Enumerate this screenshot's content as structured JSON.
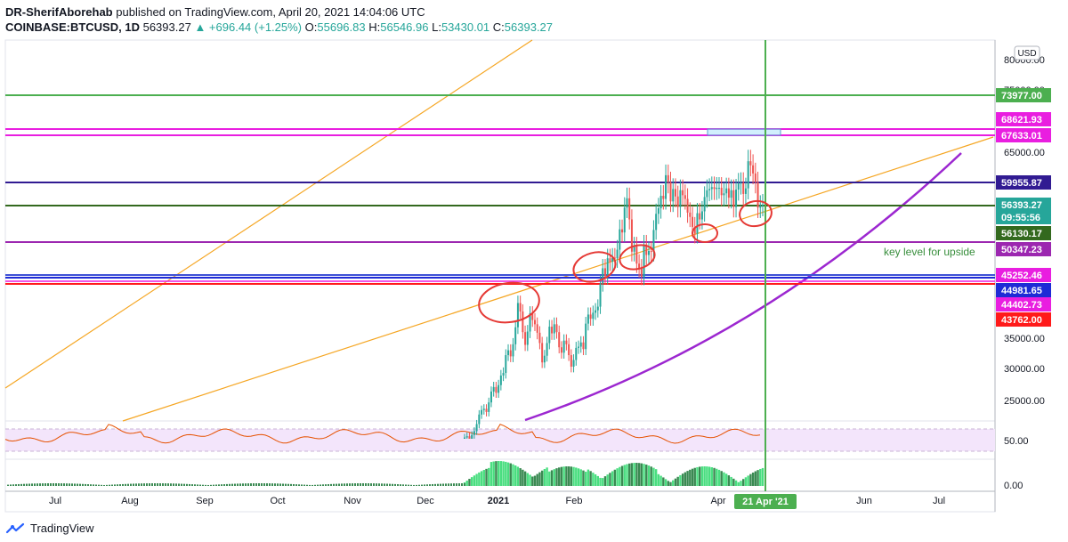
{
  "header": {
    "author": "DR-SherifAborehab",
    "published_text": "published on TradingView.com, April 20, 2021 14:04:06 UTC",
    "symbol": "COINBASE:BTCUSD, 1D",
    "last": "56393.27",
    "change": "▲ +696.44 (+1.25%)",
    "o_label": "O:",
    "o": "55696.83",
    "h_label": "H:",
    "h": "56546.96",
    "l_label": "L:",
    "l": "53430.01",
    "c_label": "C:",
    "c": "56393.27"
  },
  "footer": {
    "brand": "TradingView"
  },
  "currency_button": "USD",
  "annotation_text": "key level for upside",
  "chart_data": {
    "type": "candlestick",
    "title": "",
    "xlabel": "",
    "ylabel": "",
    "ylim": [
      20000,
      80000
    ],
    "y_ticks": [
      "80000.00",
      "75000.00",
      "65000.00",
      "35000.00",
      "30000.00",
      "25000.00"
    ],
    "x_ticks": [
      "Jul",
      "Aug",
      "Sep",
      "Oct",
      "Nov",
      "Dec",
      "2021",
      "Feb",
      "Apr",
      "Jun",
      "Jul"
    ],
    "cursor_label": "21 Apr '21",
    "price_lines": [
      {
        "label": "73977.00",
        "color": "#4caf50"
      },
      {
        "label": "68621.93",
        "color": "#e91ee0"
      },
      {
        "label": "67633.01",
        "color": "#e91ee0"
      },
      {
        "label": "59955.87",
        "color": "#311b92"
      },
      {
        "label": "56393.27",
        "color": "#26a69a"
      },
      {
        "label": "09:55:56",
        "color": "#26a69a"
      },
      {
        "label": "56130.17",
        "color": "#33691e"
      },
      {
        "label": "50347.23",
        "color": "#9c27b0"
      },
      {
        "label": "45252.46",
        "color": "#e91ee0"
      },
      {
        "label": "44981.65",
        "color": "#1e2bd6"
      },
      {
        "label": "44402.73",
        "color": "#e91ee0"
      },
      {
        "label": "43762.00",
        "color": "#ff1a1a"
      }
    ],
    "rsi_tick": "50.00",
    "volume_tick": "0.00",
    "candles_close": [
      19200,
      19400,
      18800,
      19600,
      20200,
      21300,
      22800,
      23500,
      23700,
      23200,
      24700,
      26400,
      27100,
      26200,
      27400,
      28900,
      29300,
      32200,
      33000,
      32000,
      34000,
      36800,
      40800,
      39400,
      36000,
      33900,
      36100,
      39100,
      38000,
      37300,
      35900,
      34200,
      31000,
      32100,
      34200,
      36900,
      35800,
      37300,
      36000,
      33500,
      32600,
      34600,
      34000,
      32200,
      30300,
      31400,
      33400,
      33600,
      34300,
      33200,
      37400,
      38900,
      38200,
      39200,
      39600,
      40200,
      44000,
      46400,
      45200,
      47900,
      47400,
      48000,
      47900,
      49200,
      52400,
      51900,
      55900,
      57400,
      54000,
      48900,
      49700,
      47100,
      46400,
      45100,
      50000,
      48400,
      49000,
      48900,
      52300,
      54900,
      55800,
      57800,
      57300,
      61200,
      60000,
      56900,
      58900,
      57700,
      56000,
      58700,
      57900,
      57300,
      55100,
      54400,
      52800,
      51700,
      55000,
      54000,
      55300,
      57600,
      58700,
      58900,
      59200,
      58900,
      59100,
      59100,
      57900,
      58200,
      59000,
      57500,
      58700,
      56000,
      58800,
      59800,
      59900,
      58100,
      59000,
      63600,
      62900,
      61500,
      60000,
      55900,
      56200,
      56393
    ]
  }
}
